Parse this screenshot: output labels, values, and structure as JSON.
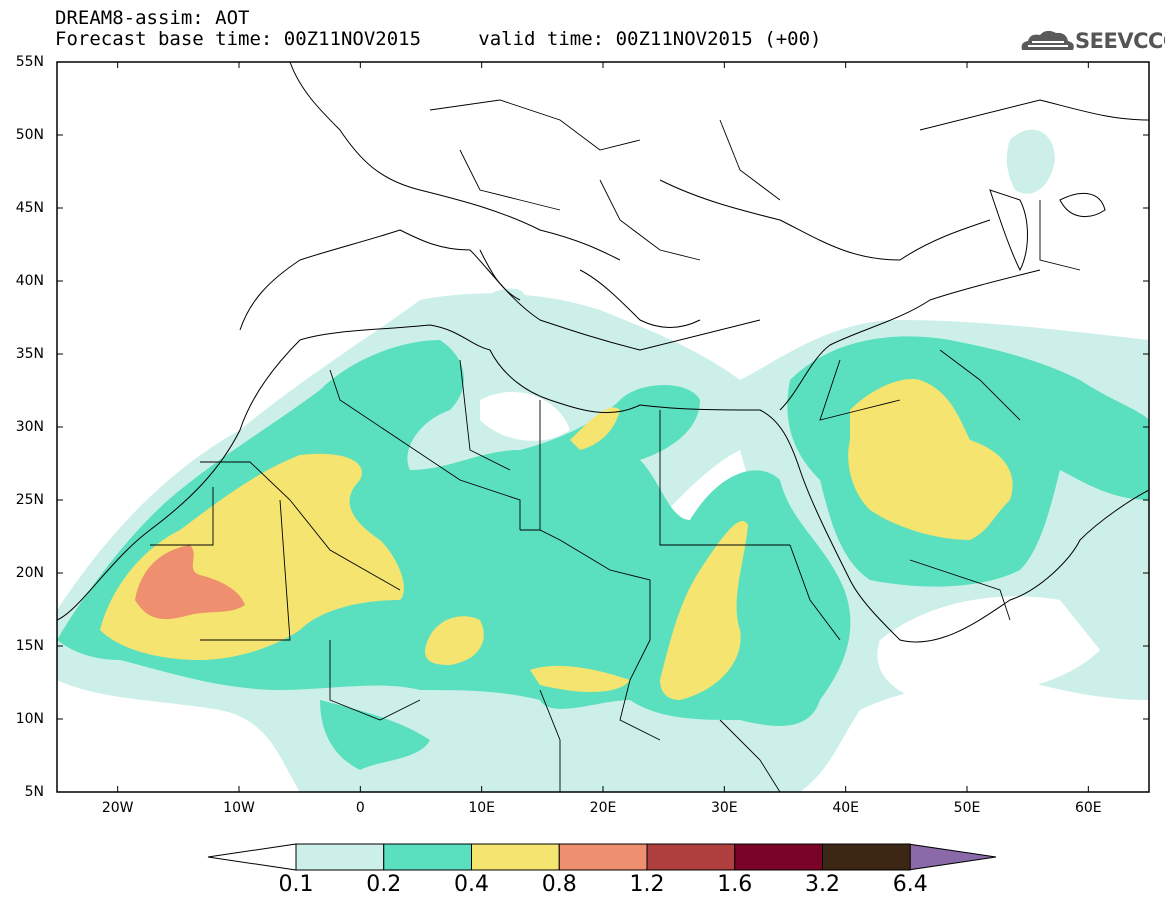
{
  "title": {
    "line1": "DREAM8-assim: AOT",
    "base_label": "Forecast base time:",
    "base_time": "00Z11NOV2015",
    "valid_label": "valid time:",
    "valid_time": "00Z11NOV2015 (+00)"
  },
  "logo_text": "SEEVCCC",
  "axes": {
    "lat_labels": [
      "55N",
      "50N",
      "45N",
      "40N",
      "35N",
      "30N",
      "25N",
      "20N",
      "15N",
      "10N",
      "5N"
    ],
    "lon_labels": [
      "20W",
      "10W",
      "0",
      "10E",
      "20E",
      "30E",
      "40E",
      "50E",
      "60E"
    ]
  },
  "colorbar": {
    "labels": [
      "0.1",
      "0.2",
      "0.4",
      "0.8",
      "1.2",
      "1.6",
      "3.2",
      "6.4"
    ],
    "colors": [
      "#ccf0e9",
      "#5be0bf",
      "#f5e470",
      "#ee9070",
      "#b04040",
      "#7a0428",
      "#3c2614",
      "#8a6aa8"
    ]
  },
  "map": {
    "type": "aerosol optical thickness map",
    "extent": {
      "lon": [
        -25,
        65
      ],
      "lat": [
        5,
        55
      ]
    }
  }
}
